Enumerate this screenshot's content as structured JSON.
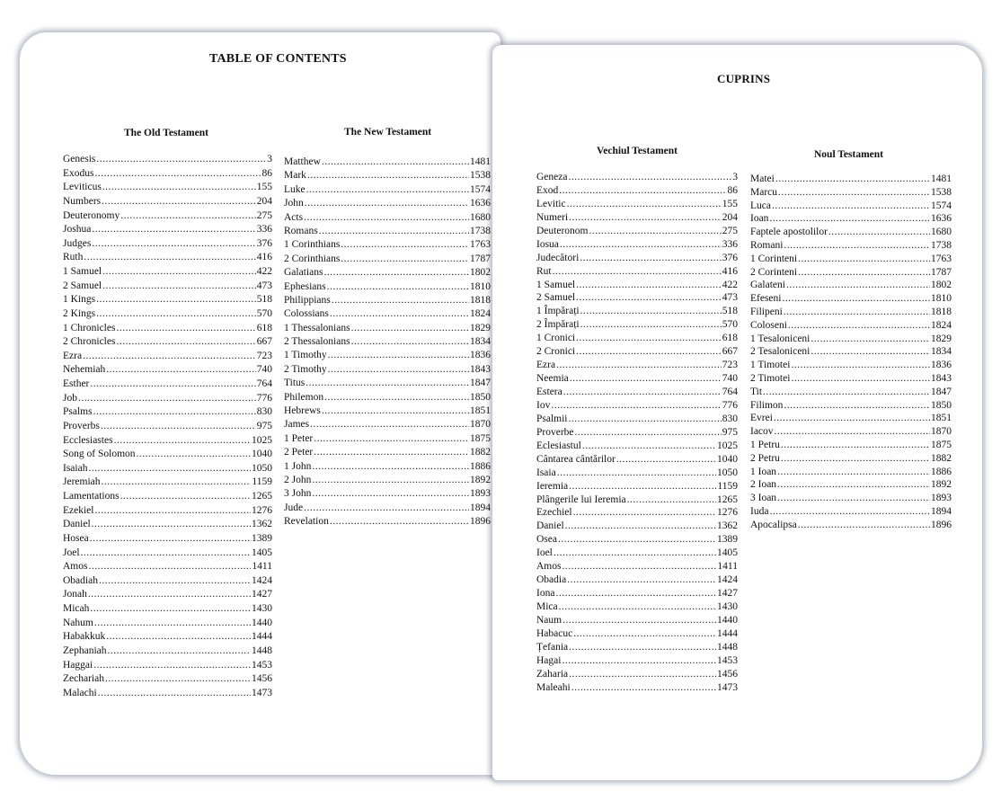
{
  "left_page": {
    "title": "TABLE OF CONTENTS",
    "old_testament": {
      "heading": "The Old Testament",
      "entries": [
        {
          "name": "Genesis",
          "page": "3"
        },
        {
          "name": "Exodus",
          "page": "86"
        },
        {
          "name": "Leviticus",
          "page": "155"
        },
        {
          "name": "Numbers",
          "page": "204"
        },
        {
          "name": "Deuteronomy",
          "page": "275"
        },
        {
          "name": "Joshua",
          "page": "336"
        },
        {
          "name": "Judges",
          "page": "376"
        },
        {
          "name": "Ruth",
          "page": "416"
        },
        {
          "name": "1 Samuel",
          "page": "422"
        },
        {
          "name": "2 Samuel",
          "page": "473"
        },
        {
          "name": "1 Kings",
          "page": "518"
        },
        {
          "name": "2 Kings",
          "page": "570"
        },
        {
          "name": "1 Chronicles",
          "page": "618"
        },
        {
          "name": "2 Chronicles",
          "page": "667"
        },
        {
          "name": "Ezra",
          "page": "723"
        },
        {
          "name": "Nehemiah",
          "page": "740"
        },
        {
          "name": "Esther",
          "page": "764"
        },
        {
          "name": "Job",
          "page": "776"
        },
        {
          "name": "Psalms",
          "page": "830"
        },
        {
          "name": "Proverbs",
          "page": "975"
        },
        {
          "name": "Ecclesiastes",
          "page": "1025"
        },
        {
          "name": "Song of Solomon",
          "page": "1040"
        },
        {
          "name": "Isaiah",
          "page": "1050"
        },
        {
          "name": "Jeremiah",
          "page": "1159"
        },
        {
          "name": "Lamentations",
          "page": "1265"
        },
        {
          "name": "Ezekiel",
          "page": "1276"
        },
        {
          "name": "Daniel",
          "page": "1362"
        },
        {
          "name": "Hosea",
          "page": "1389"
        },
        {
          "name": "Joel",
          "page": "1405"
        },
        {
          "name": "Amos",
          "page": "1411"
        },
        {
          "name": "Obadiah",
          "page": "1424"
        },
        {
          "name": "Jonah",
          "page": "1427"
        },
        {
          "name": "Micah",
          "page": "1430"
        },
        {
          "name": "Nahum",
          "page": "1440"
        },
        {
          "name": "Habakkuk",
          "page": "1444"
        },
        {
          "name": "Zephaniah",
          "page": "1448"
        },
        {
          "name": "Haggai",
          "page": "1453"
        },
        {
          "name": "Zechariah",
          "page": "1456"
        },
        {
          "name": "Malachi",
          "page": "1473"
        }
      ]
    },
    "new_testament": {
      "heading": "The New Testament",
      "entries": [
        {
          "name": "Matthew",
          "page": "1481"
        },
        {
          "name": "Mark",
          "page": "1538"
        },
        {
          "name": "Luke",
          "page": "1574"
        },
        {
          "name": "John",
          "page": "1636"
        },
        {
          "name": "Acts",
          "page": "1680"
        },
        {
          "name": "Romans",
          "page": "1738"
        },
        {
          "name": "1 Corinthians",
          "page": "1763"
        },
        {
          "name": "2 Corinthians",
          "page": "1787"
        },
        {
          "name": "Galatians",
          "page": "1802"
        },
        {
          "name": "Ephesians",
          "page": "1810"
        },
        {
          "name": "Philippians",
          "page": "1818"
        },
        {
          "name": "Colossians",
          "page": "1824"
        },
        {
          "name": "1 Thessalonians",
          "page": "1829"
        },
        {
          "name": "2 Thessalonians",
          "page": "1834"
        },
        {
          "name": "1 Timothy",
          "page": "1836"
        },
        {
          "name": "2 Timothy",
          "page": "1843"
        },
        {
          "name": "Titus",
          "page": "1847"
        },
        {
          "name": "Philemon",
          "page": "1850"
        },
        {
          "name": "Hebrews",
          "page": "1851"
        },
        {
          "name": "James",
          "page": "1870"
        },
        {
          "name": "1 Peter",
          "page": "1875"
        },
        {
          "name": "2 Peter",
          "page": "1882"
        },
        {
          "name": "1 John",
          "page": "1886"
        },
        {
          "name": "2 John",
          "page": "1892"
        },
        {
          "name": "3 John",
          "page": "1893"
        },
        {
          "name": "Jude",
          "page": "1894"
        },
        {
          "name": "Revelation",
          "page": "1896"
        }
      ]
    }
  },
  "right_page": {
    "title": "CUPRINS",
    "old_testament": {
      "heading": "Vechiul Testament",
      "entries": [
        {
          "name": "Geneza",
          "page": "3"
        },
        {
          "name": "Exod",
          "page": "86"
        },
        {
          "name": "Levitic",
          "page": "155"
        },
        {
          "name": "Numeri",
          "page": "204"
        },
        {
          "name": "Deuteronom",
          "page": "275"
        },
        {
          "name": "Iosua",
          "page": "336"
        },
        {
          "name": "Judecători",
          "page": "376"
        },
        {
          "name": "Rut",
          "page": "416"
        },
        {
          "name": "1 Samuel",
          "page": "422"
        },
        {
          "name": "2 Samuel",
          "page": "473"
        },
        {
          "name": "1 Împărați",
          "page": "518"
        },
        {
          "name": "2 Împărați",
          "page": "570"
        },
        {
          "name": "1 Cronici",
          "page": "618"
        },
        {
          "name": "2 Cronici",
          "page": "667"
        },
        {
          "name": "Ezra",
          "page": "723"
        },
        {
          "name": "Neemia",
          "page": "740"
        },
        {
          "name": "Estera",
          "page": "764"
        },
        {
          "name": "Iov",
          "page": "776"
        },
        {
          "name": "Psalmii",
          "page": "830"
        },
        {
          "name": "Proverbe",
          "page": "975"
        },
        {
          "name": "Eclesiastul",
          "page": "1025"
        },
        {
          "name": "Cântarea cântărilor",
          "page": "1040"
        },
        {
          "name": "Isaia",
          "page": "1050"
        },
        {
          "name": "Ieremia",
          "page": "1159"
        },
        {
          "name": "Plângerile lui Ieremia",
          "page": "1265"
        },
        {
          "name": "Ezechiel",
          "page": "1276"
        },
        {
          "name": "Daniel",
          "page": "1362"
        },
        {
          "name": "Osea",
          "page": "1389"
        },
        {
          "name": "Ioel",
          "page": "1405"
        },
        {
          "name": "Amos",
          "page": "1411"
        },
        {
          "name": "Obadia",
          "page": "1424"
        },
        {
          "name": "Iona",
          "page": "1427"
        },
        {
          "name": "Mica",
          "page": "1430"
        },
        {
          "name": "Naum",
          "page": "1440"
        },
        {
          "name": "Habacuc",
          "page": "1444"
        },
        {
          "name": "Țefania",
          "page": "1448"
        },
        {
          "name": "Hagai",
          "page": "1453"
        },
        {
          "name": "Zaharia",
          "page": "1456"
        },
        {
          "name": "Maleahi",
          "page": "1473"
        }
      ]
    },
    "new_testament": {
      "heading": "Noul Testament",
      "entries": [
        {
          "name": "Matei",
          "page": "1481"
        },
        {
          "name": "Marcu",
          "page": "1538"
        },
        {
          "name": "Luca",
          "page": "1574"
        },
        {
          "name": "Ioan",
          "page": "1636"
        },
        {
          "name": "Faptele apostolilor",
          "page": "1680"
        },
        {
          "name": "Romani",
          "page": "1738"
        },
        {
          "name": "1 Corinteni",
          "page": "1763"
        },
        {
          "name": "2 Corinteni",
          "page": "1787"
        },
        {
          "name": "Galateni",
          "page": "1802"
        },
        {
          "name": "Efeseni",
          "page": "1810"
        },
        {
          "name": "Filipeni",
          "page": "1818"
        },
        {
          "name": "Coloseni",
          "page": "1824"
        },
        {
          "name": "1 Tesaloniceni",
          "page": "1829"
        },
        {
          "name": "2 Tesaloniceni",
          "page": "1834"
        },
        {
          "name": "1 Timotei",
          "page": "1836"
        },
        {
          "name": "2 Timotei",
          "page": "1843"
        },
        {
          "name": "Tit",
          "page": "1847"
        },
        {
          "name": "Filimon",
          "page": "1850"
        },
        {
          "name": "Evrei",
          "page": "1851"
        },
        {
          "name": "Iacov",
          "page": "1870"
        },
        {
          "name": "1 Petru",
          "page": "1875"
        },
        {
          "name": "2 Petru",
          "page": "1882"
        },
        {
          "name": "1 Ioan",
          "page": "1886"
        },
        {
          "name": "2 Ioan",
          "page": "1892"
        },
        {
          "name": "3 Ioan",
          "page": "1893"
        },
        {
          "name": "Iuda",
          "page": "1894"
        },
        {
          "name": "Apocalipsa",
          "page": "1896"
        }
      ]
    }
  }
}
